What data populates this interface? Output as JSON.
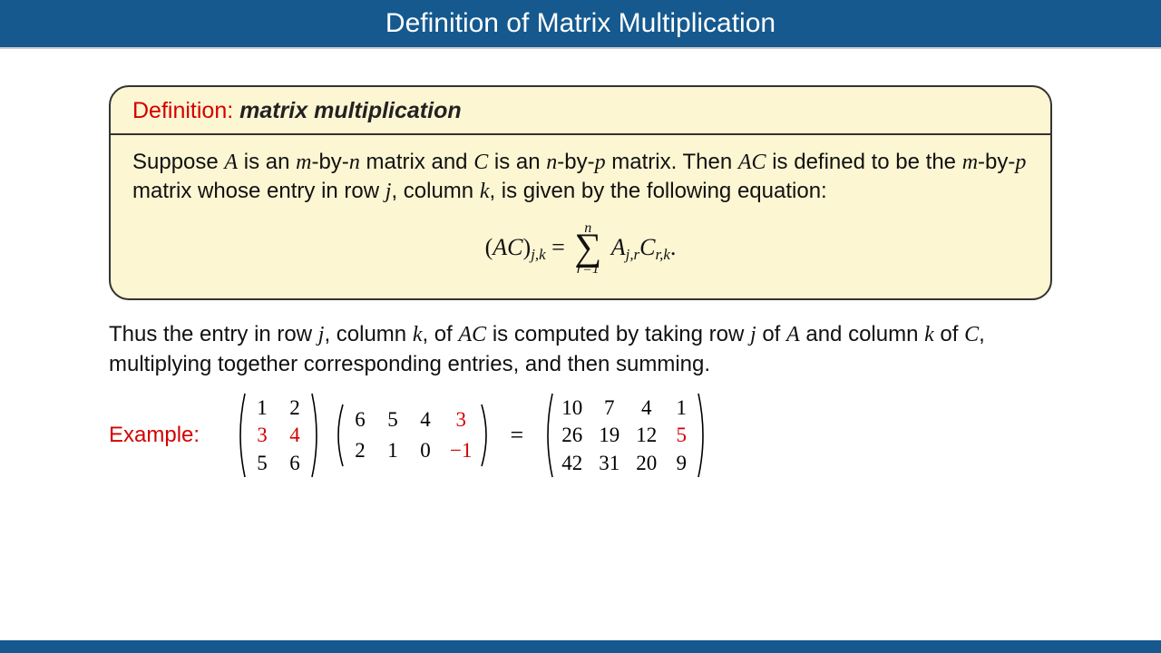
{
  "title": "Definition of Matrix Multiplication",
  "definition": {
    "label": "Definition:",
    "term": "matrix multiplication",
    "body_html": "Suppose <span class='mi'>A</span> is an <span class='mi'>m</span>-by-<span class='mi'>n</span> matrix and <span class='mi'>C</span> is an <span class='mi'>n</span>-by-<span class='mi'>p</span> matrix. Then <span class='mi'>AC</span> is defined to be the <span class='mi'>m</span>-by-<span class='mi'>p</span> matrix whose entry in row <span class='mi'>j</span>, column <span class='mi'>k</span>, is given by the following equation:",
    "equation": {
      "lhs": "(<span class='mi'>AC</span>)<span class='sub'>j,k</span>",
      "sum_top": "n",
      "sum_bot": "r=1",
      "rhs": "<span class='mi'>A</span><span class='sub'>j,r</span><span class='mi'>C</span><span class='sub'>r,k</span>."
    }
  },
  "explain_html": "Thus the entry in row <span class='mi'>j</span>, column <span class='mi'>k</span>, of <span class='mi'>AC</span> is computed by taking row <span class='mi'>j</span> of <span class='mi'>A</span> and column <span class='mi'>k</span> of <span class='mi'>C</span>, multiplying together corresponding entries, and then summing.",
  "example": {
    "label": "Example:",
    "A": {
      "rows": 3,
      "cols": 2,
      "cells": [
        {
          "v": "1"
        },
        {
          "v": "2"
        },
        {
          "v": "3",
          "red": true
        },
        {
          "v": "4",
          "red": true
        },
        {
          "v": "5"
        },
        {
          "v": "6"
        }
      ],
      "paren_height": 96
    },
    "C": {
      "rows": 2,
      "cols": 4,
      "cells": [
        {
          "v": "6"
        },
        {
          "v": "5"
        },
        {
          "v": "4"
        },
        {
          "v": "3",
          "red": true
        },
        {
          "v": "2"
        },
        {
          "v": "1"
        },
        {
          "v": "0"
        },
        {
          "v": "−1",
          "red": true
        }
      ],
      "paren_height": 72
    },
    "R": {
      "rows": 3,
      "cols": 4,
      "cells": [
        {
          "v": "10"
        },
        {
          "v": "7"
        },
        {
          "v": "4"
        },
        {
          "v": "1"
        },
        {
          "v": "26"
        },
        {
          "v": "19"
        },
        {
          "v": "12"
        },
        {
          "v": "5",
          "red": true
        },
        {
          "v": "42"
        },
        {
          "v": "31"
        },
        {
          "v": "20"
        },
        {
          "v": "9"
        }
      ],
      "paren_height": 96
    },
    "equals": "="
  },
  "colors": {
    "title_bg": "#15598e",
    "title_fg": "#ffffff",
    "box_bg": "#fdf6d3",
    "box_border": "#333333",
    "accent_red": "#d40000",
    "page_bg": "#ffffff"
  }
}
